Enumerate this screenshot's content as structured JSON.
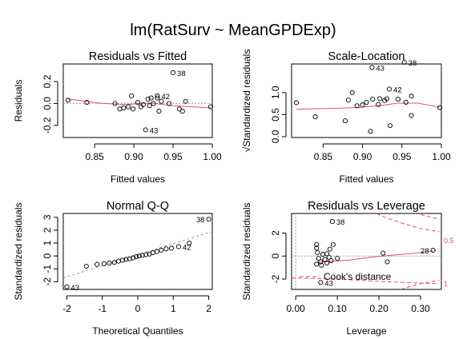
{
  "title": "lm(RatSurv ~ MeanGPDExp)",
  "colors": {
    "smooth": "#DF536B",
    "cooks": "#DF536B",
    "ref": "#999999",
    "ink": "#000000"
  },
  "chart_data": [
    {
      "type": "scatter",
      "title": "Residuals vs Fitted",
      "xlabel": "Fitted values",
      "ylabel": "Residuals",
      "xlim": [
        0.81,
        1.0
      ],
      "ylim": [
        -0.31,
        0.36
      ],
      "xticks": [
        0.85,
        0.9,
        0.95,
        1.0
      ],
      "xtick_labels": [
        "0.85",
        "0.90",
        "0.95",
        "1.00"
      ],
      "yticks": [
        -0.2,
        0.0,
        0.2
      ],
      "ytick_labels": [
        "-0.2",
        "0.0",
        "0.2"
      ],
      "points": [
        [
          0.816,
          0.03
        ],
        [
          0.84,
          0.01
        ],
        [
          0.876,
          0.0
        ],
        [
          0.882,
          -0.05
        ],
        [
          0.887,
          -0.04
        ],
        [
          0.893,
          -0.03
        ],
        [
          0.897,
          0.07
        ],
        [
          0.899,
          -0.05
        ],
        [
          0.905,
          0.01
        ],
        [
          0.909,
          -0.03
        ],
        [
          0.912,
          -0.01
        ],
        [
          0.918,
          0.04
        ],
        [
          0.92,
          -0.02
        ],
        [
          0.922,
          0.05
        ],
        [
          0.925,
          0.0
        ],
        [
          0.93,
          0.05
        ],
        [
          0.932,
          -0.07
        ],
        [
          0.935,
          0.02
        ],
        [
          0.945,
          0.0
        ],
        [
          0.958,
          -0.05
        ],
        [
          0.962,
          -0.07
        ],
        [
          0.966,
          0.02
        ],
        [
          0.998,
          -0.03
        ],
        [
          0.95,
          0.28
        ],
        [
          0.93,
          0.07
        ],
        [
          0.915,
          -0.24
        ]
      ],
      "smooth": [
        [
          0.816,
          0.04
        ],
        [
          0.86,
          0.0
        ],
        [
          0.89,
          -0.01
        ],
        [
          0.92,
          0.005
        ],
        [
          0.95,
          -0.02
        ],
        [
          0.975,
          -0.03
        ],
        [
          0.998,
          -0.04
        ]
      ],
      "labels": [
        {
          "text": "38",
          "x": 0.95,
          "y": 0.28
        },
        {
          "text": "42",
          "x": 0.93,
          "y": 0.07
        },
        {
          "text": "43",
          "x": 0.915,
          "y": -0.24
        }
      ]
    },
    {
      "type": "scatter",
      "title": "Scale-Location",
      "xlabel": "Fitted values",
      "ylabel": "√Standardized residuals",
      "xlim": [
        0.81,
        1.0
      ],
      "ylim": [
        -0.02,
        1.65
      ],
      "xticks": [
        0.85,
        0.9,
        0.95,
        1.0
      ],
      "xtick_labels": [
        "0.85",
        "0.90",
        "0.95",
        "1.00"
      ],
      "yticks": [
        0.0,
        0.5,
        1.0
      ],
      "ytick_labels": [
        "0.0",
        "0.5",
        "1.0"
      ],
      "points": [
        [
          0.816,
          0.77
        ],
        [
          0.84,
          0.45
        ],
        [
          0.878,
          0.36
        ],
        [
          0.882,
          0.83
        ],
        [
          0.887,
          1.0
        ],
        [
          0.893,
          0.7
        ],
        [
          0.9,
          0.72
        ],
        [
          0.905,
          0.78
        ],
        [
          0.91,
          0.12
        ],
        [
          0.913,
          0.85
        ],
        [
          0.92,
          0.73
        ],
        [
          0.922,
          0.86
        ],
        [
          0.928,
          0.82
        ],
        [
          0.931,
          0.86
        ],
        [
          0.935,
          0.25
        ],
        [
          0.945,
          0.85
        ],
        [
          0.955,
          0.78
        ],
        [
          0.962,
          0.48
        ],
        [
          0.962,
          0.92
        ],
        [
          0.998,
          0.66
        ],
        [
          0.912,
          1.57
        ],
        [
          0.934,
          1.08
        ],
        [
          0.953,
          1.69
        ]
      ],
      "smooth": [
        [
          0.816,
          0.62
        ],
        [
          0.86,
          0.64
        ],
        [
          0.895,
          0.66
        ],
        [
          0.92,
          0.7
        ],
        [
          0.945,
          0.76
        ],
        [
          0.97,
          0.76
        ],
        [
          0.998,
          0.67
        ]
      ],
      "labels": [
        {
          "text": "43",
          "x": 0.912,
          "y": 1.57
        },
        {
          "text": "42",
          "x": 0.934,
          "y": 1.08
        },
        {
          "text": "38",
          "x": 0.953,
          "y": 1.69
        }
      ]
    },
    {
      "type": "scatter",
      "title": "Normal Q-Q",
      "xlabel": "Theoretical Quantiles",
      "ylabel": "Standardized residuals",
      "xlim": [
        -2.1,
        2.1
      ],
      "ylim": [
        -2.6,
        3.3
      ],
      "xticks": [
        -2,
        -1,
        0,
        1,
        2
      ],
      "xtick_labels": [
        "-2",
        "-1",
        "0",
        "1",
        "2"
      ],
      "yticks": [
        -2,
        -1,
        0,
        1,
        2,
        3
      ],
      "ytick_labels": [
        "-2",
        "-1",
        "0",
        "1",
        "2",
        "3"
      ],
      "points": [
        [
          -2.0,
          -2.4
        ],
        [
          -1.45,
          -0.8
        ],
        [
          -1.15,
          -0.65
        ],
        [
          -0.95,
          -0.6
        ],
        [
          -0.8,
          -0.55
        ],
        [
          -0.66,
          -0.5
        ],
        [
          -0.54,
          -0.4
        ],
        [
          -0.43,
          -0.33
        ],
        [
          -0.33,
          -0.27
        ],
        [
          -0.23,
          -0.22
        ],
        [
          -0.13,
          -0.15
        ],
        [
          -0.04,
          -0.05
        ],
        [
          0.04,
          0.0
        ],
        [
          0.13,
          0.05
        ],
        [
          0.23,
          0.1
        ],
        [
          0.33,
          0.15
        ],
        [
          0.43,
          0.25
        ],
        [
          0.54,
          0.35
        ],
        [
          0.66,
          0.45
        ],
        [
          0.8,
          0.55
        ],
        [
          0.95,
          0.6
        ],
        [
          1.15,
          0.72
        ],
        [
          1.45,
          1.0
        ],
        [
          2.0,
          2.85
        ]
      ],
      "refline": [
        [
          -2.1,
          -1.7
        ],
        [
          2.1,
          1.9
        ]
      ],
      "labels": [
        {
          "text": "43",
          "x": -2.0,
          "y": -2.4
        },
        {
          "text": "42",
          "x": 1.15,
          "y": 0.72
        },
        {
          "text": "38",
          "x": 2.0,
          "y": 2.85
        }
      ]
    },
    {
      "type": "scatter",
      "title": "Residuals vs Leverage",
      "xlabel": "Leverage",
      "ylabel": "Standardized residuals",
      "xlim": [
        -0.01,
        0.35
      ],
      "ylim": [
        -2.9,
        3.7
      ],
      "xticks": [
        0.0,
        0.1,
        0.2,
        0.3
      ],
      "xtick_labels": [
        "0.00",
        "0.10",
        "0.20",
        "0.30"
      ],
      "yticks": [
        -2,
        0,
        2
      ],
      "ytick_labels": [
        "-2",
        "0",
        "2"
      ],
      "points": [
        [
          0.05,
          1.0
        ],
        [
          0.05,
          0.7
        ],
        [
          0.052,
          0.3
        ],
        [
          0.055,
          -0.2
        ],
        [
          0.05,
          -0.7
        ],
        [
          0.06,
          -0.5
        ],
        [
          0.062,
          -0.8
        ],
        [
          0.065,
          0.15
        ],
        [
          0.07,
          -0.3
        ],
        [
          0.075,
          -0.6
        ],
        [
          0.075,
          0.2
        ],
        [
          0.08,
          -0.1
        ],
        [
          0.082,
          0.6
        ],
        [
          0.085,
          -0.4
        ],
        [
          0.09,
          1.0
        ],
        [
          0.1,
          -0.2
        ],
        [
          0.21,
          0.25
        ],
        [
          0.22,
          -0.5
        ],
        [
          0.33,
          0.5
        ],
        [
          0.06,
          -2.3
        ],
        [
          0.088,
          3.0
        ]
      ],
      "smooth": [
        [
          0.05,
          -0.55
        ],
        [
          0.09,
          -0.45
        ],
        [
          0.13,
          -0.35
        ],
        [
          0.18,
          -0.1
        ],
        [
          0.24,
          0.1
        ],
        [
          0.3,
          0.3
        ],
        [
          0.33,
          0.45
        ]
      ],
      "labels": [
        {
          "text": "38",
          "x": 0.088,
          "y": 3.0
        },
        {
          "text": "28",
          "x": 0.33,
          "y": 0.5
        },
        {
          "text": "43",
          "x": 0.06,
          "y": -2.3
        }
      ],
      "cooks": [
        {
          "text": "0.5",
          "upper": [
            [
              0.18,
              3.9
            ],
            [
              0.22,
              3.3
            ],
            [
              0.26,
              2.8
            ],
            [
              0.3,
              2.4
            ],
            [
              0.345,
              2.1
            ]
          ],
          "lower": [
            [
              0.18,
              -3.9
            ],
            [
              0.22,
              -3.3
            ],
            [
              0.26,
              -2.8
            ],
            [
              0.3,
              -2.4
            ],
            [
              0.345,
              -2.1
            ]
          ]
        },
        {
          "text": "1",
          "upper": [
            [
              0.3,
              3.6
            ],
            [
              0.345,
              3.2
            ]
          ],
          "lower": [
            [
              -0.01,
              -1.9
            ],
            [
              0.1,
              -2.0
            ],
            [
              0.2,
              -2.2
            ],
            [
              0.3,
              -2.35
            ],
            [
              0.345,
              -2.4
            ]
          ]
        }
      ],
      "cooks_legend": "Cook's distance"
    }
  ]
}
